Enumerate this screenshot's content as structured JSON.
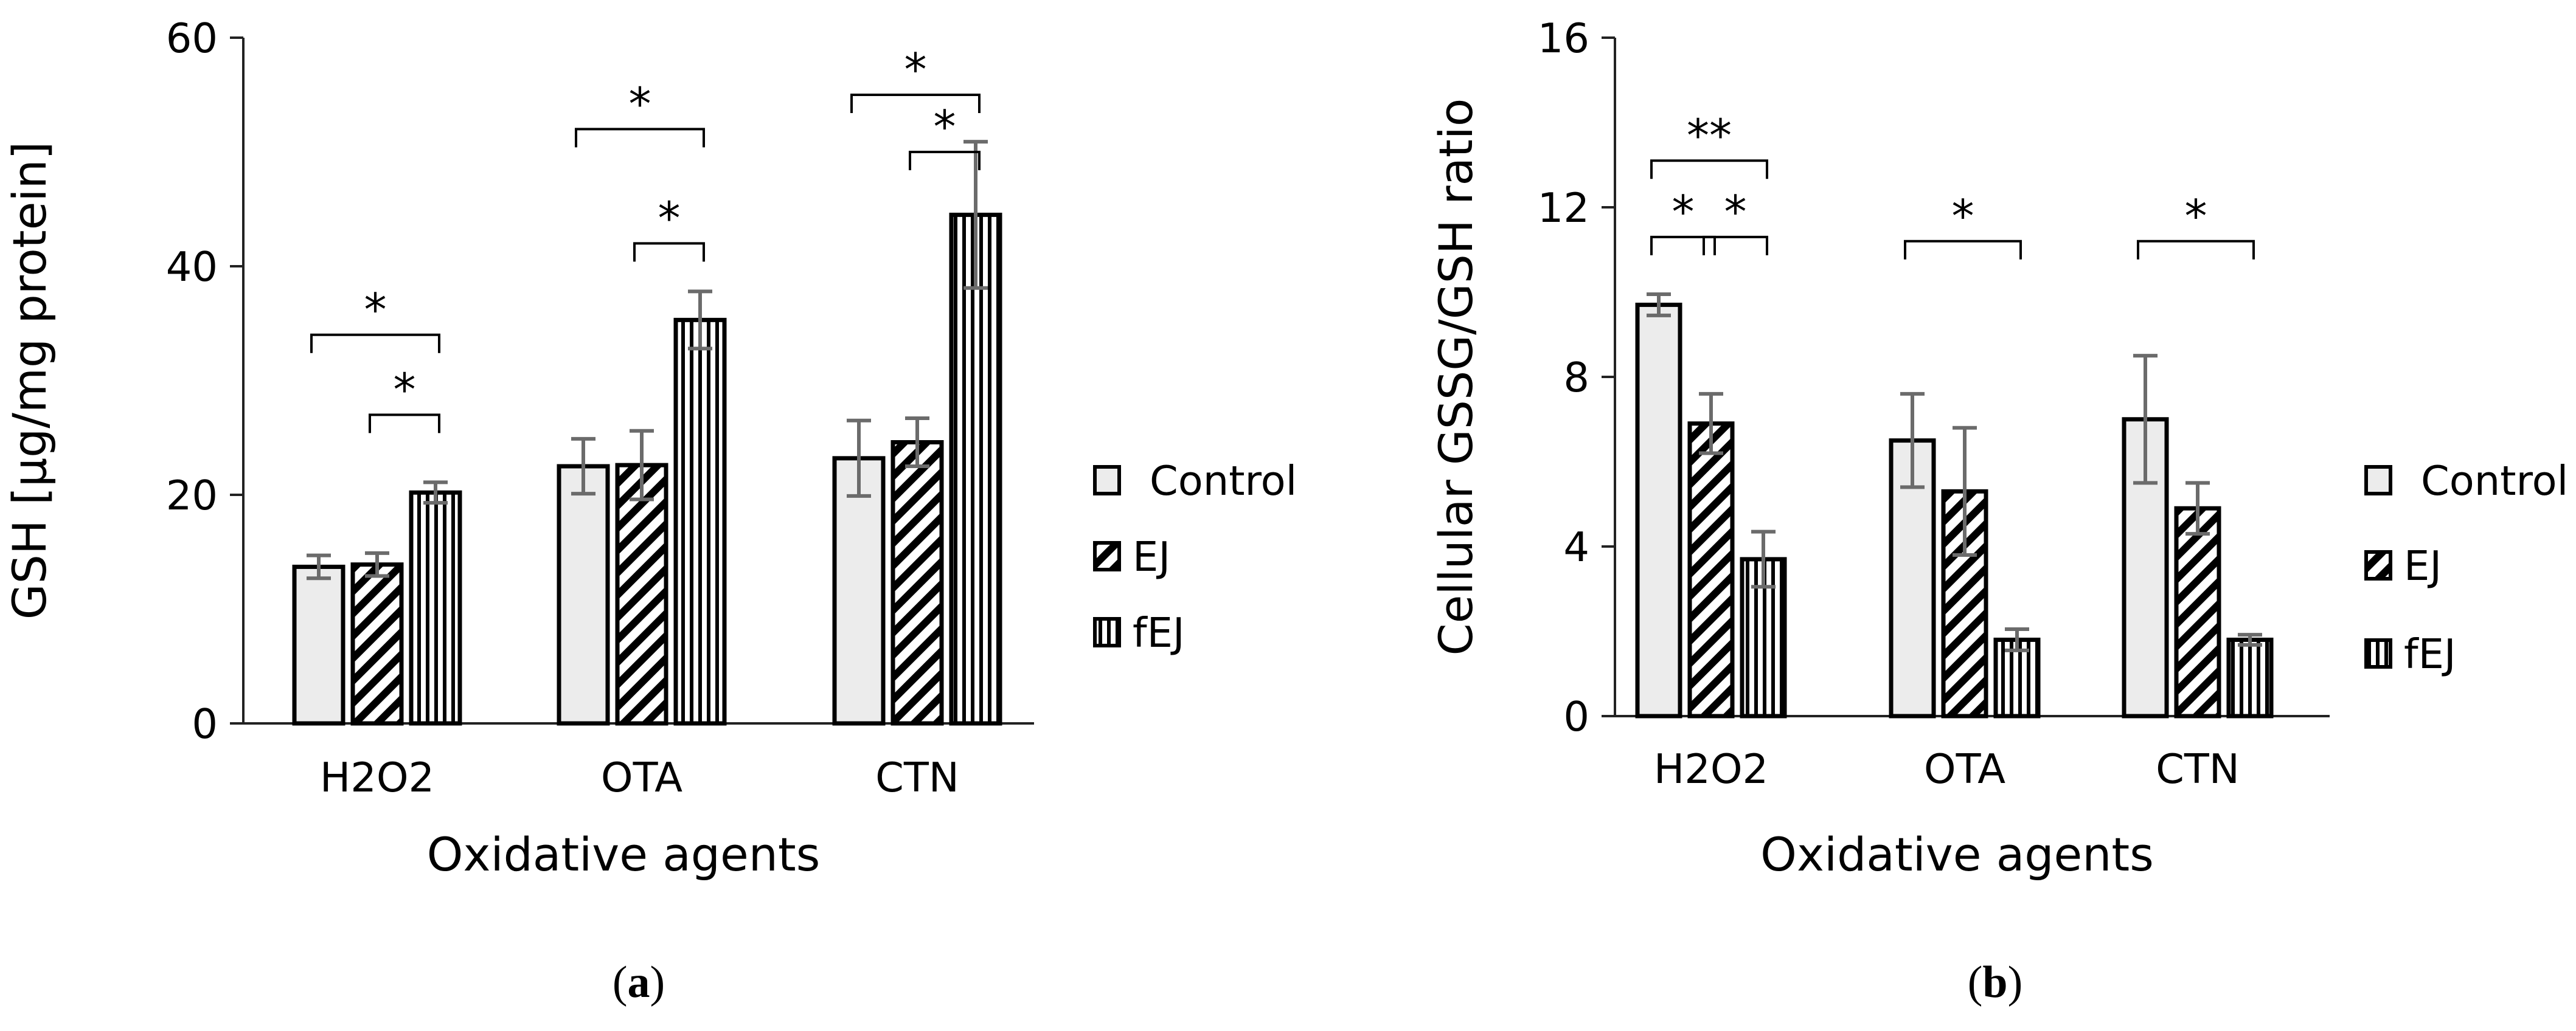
{
  "chart_data": [
    {
      "panel_label": "a",
      "type": "bar",
      "categories": [
        "H2O2",
        "OTA",
        "CTN"
      ],
      "series": [
        {
          "name": "Control",
          "pattern": "solid",
          "values": [
            13.7,
            22.5,
            23.2
          ],
          "errors": [
            1.0,
            2.4,
            3.3
          ]
        },
        {
          "name": "EJ",
          "pattern": "diagonal",
          "values": [
            13.9,
            22.6,
            24.6
          ],
          "errors": [
            1.0,
            3.0,
            2.1
          ]
        },
        {
          "name": "fEJ",
          "pattern": "vertical",
          "values": [
            20.2,
            35.3,
            44.5
          ],
          "errors": [
            0.9,
            2.5,
            6.4
          ]
        }
      ],
      "xlabel": "Oxidative agents",
      "ylabel": "GSH [µg/mg protein]",
      "ylim": [
        0,
        60
      ],
      "yticks": [
        "0",
        "20",
        "40",
        "60"
      ],
      "significance": [
        {
          "category": 0,
          "from": 0,
          "to": 2,
          "label": "*",
          "level": 34
        },
        {
          "category": 0,
          "from": 1,
          "to": 2,
          "label": "*",
          "level": 27
        },
        {
          "category": 1,
          "from": 0,
          "to": 2,
          "label": "*",
          "level": 52
        },
        {
          "category": 1,
          "from": 1,
          "to": 2,
          "label": "*",
          "level": 42
        },
        {
          "category": 2,
          "from": 0,
          "to": 2,
          "label": "*",
          "level": 55
        },
        {
          "category": 2,
          "from": 1,
          "to": 2,
          "label": "*",
          "level": 50
        }
      ],
      "legend": [
        "Control",
        "EJ",
        "fEJ"
      ],
      "legend_position": "right"
    },
    {
      "panel_label": "b",
      "type": "bar",
      "categories": [
        "H2O2",
        "OTA",
        "CTN"
      ],
      "series": [
        {
          "name": "Control",
          "pattern": "solid",
          "values": [
            9.7,
            6.5,
            7.0
          ],
          "errors": [
            0.25,
            1.1,
            1.5
          ]
        },
        {
          "name": "EJ",
          "pattern": "diagonal",
          "values": [
            6.9,
            5.3,
            4.9
          ],
          "errors": [
            0.7,
            1.5,
            0.6
          ]
        },
        {
          "name": "fEJ",
          "pattern": "vertical",
          "values": [
            3.7,
            1.8,
            1.8
          ],
          "errors": [
            0.65,
            0.25,
            0.12
          ]
        }
      ],
      "xlabel": "Oxidative agents",
      "ylabel": "Cellular GSSG/GSH ratio",
      "ylim": [
        0,
        16
      ],
      "yticks": [
        "0",
        "4",
        "8",
        "12",
        "16"
      ],
      "significance": [
        {
          "category": 0,
          "from": 0,
          "to": 2,
          "label": "**",
          "level": 13.1
        },
        {
          "category": 0,
          "from": 0,
          "to": 1,
          "label": "*",
          "level": 11.3
        },
        {
          "category": 0,
          "from": 1,
          "to": 2,
          "label": "*",
          "level": 11.3
        },
        {
          "category": 1,
          "from": 0,
          "to": 2,
          "label": "*",
          "level": 11.2
        },
        {
          "category": 2,
          "from": 0,
          "to": 2,
          "label": "*",
          "level": 11.2
        }
      ],
      "legend": [
        "Control",
        "EJ",
        "fEJ"
      ],
      "legend_position": "right"
    }
  ]
}
